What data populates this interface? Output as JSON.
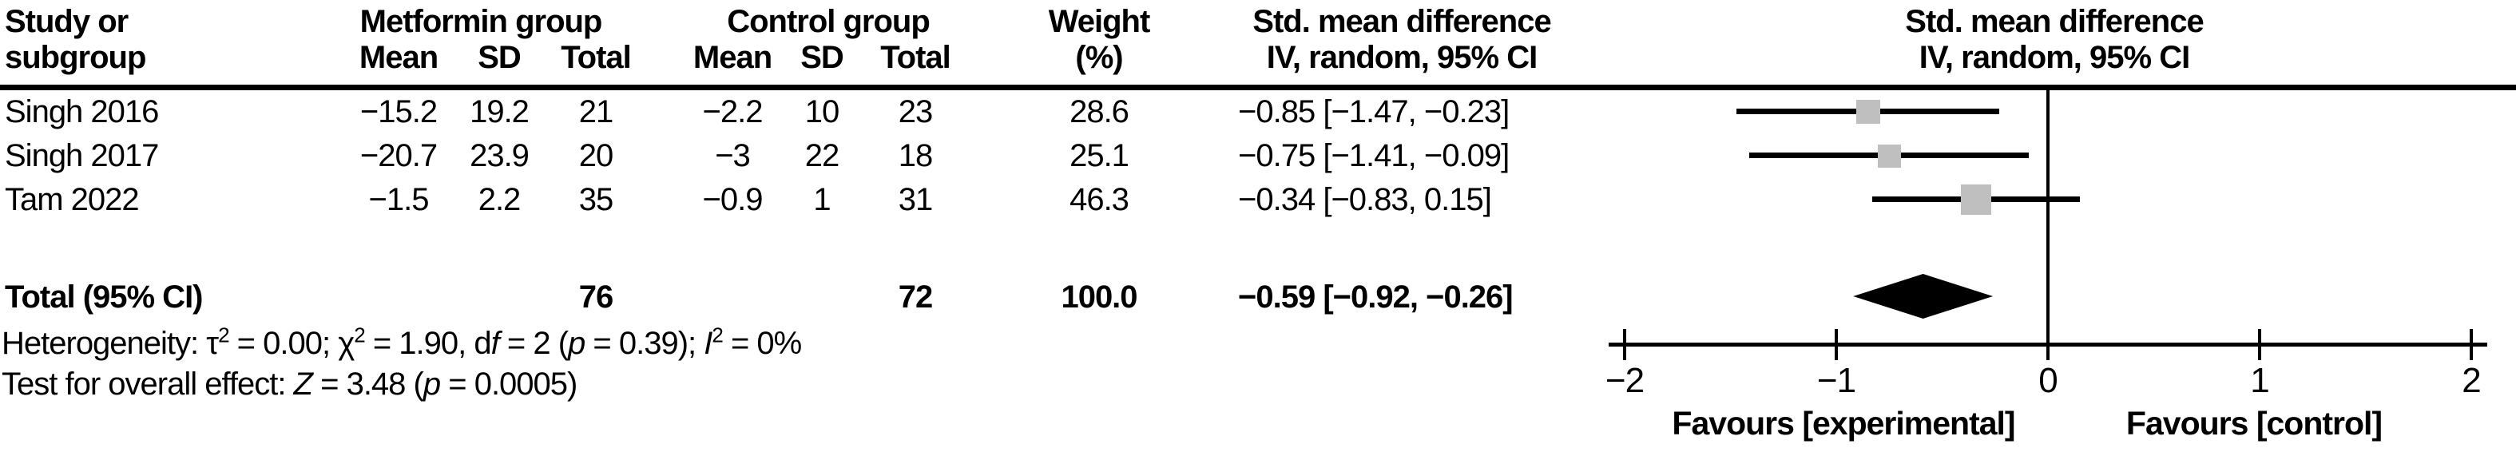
{
  "header": {
    "study_col_line1": "Study or",
    "study_col_line2": "subgroup",
    "metformin_group": "Metformin group",
    "control_group": "Control group",
    "mean": "Mean",
    "sd": "SD",
    "total": "Total",
    "weight_line1": "Weight",
    "weight_line2": "(%)",
    "smd_line1": "Std. mean difference",
    "smd_line2": "IV, random, 95% CI"
  },
  "table": {
    "studies": [
      {
        "name": "Singh 2016",
        "m_mean": "−15.2",
        "m_sd": "19.2",
        "m_total": "21",
        "c_mean": "−2.2",
        "c_sd": "10",
        "c_total": "23",
        "weight": "28.6",
        "ci": "−0.85 [−1.47, −0.23]"
      },
      {
        "name": "Singh 2017",
        "m_mean": "−20.7",
        "m_sd": "23.9",
        "m_total": "20",
        "c_mean": "−3",
        "c_sd": "22",
        "c_total": "18",
        "weight": "25.1",
        "ci": "−0.75 [−1.41, −0.09]"
      },
      {
        "name": "Tam 2022",
        "m_mean": "−1.5",
        "m_sd": "2.2",
        "m_total": "35",
        "c_mean": "−0.9",
        "c_sd": "1",
        "c_total": "31",
        "weight": "46.3",
        "ci": "−0.34 [−0.83, 0.15]"
      }
    ],
    "total_row": {
      "name": "Total (95% CI)",
      "m_total": "76",
      "c_total": "72",
      "weight": "100.0",
      "ci": "−0.59 [−0.92, −0.26]"
    }
  },
  "footnotes": {
    "heterogeneity": [
      {
        "t": "Heterogeneity: "
      },
      {
        "t": "τ"
      },
      {
        "t": "2",
        "sup": true
      },
      {
        "t": " = 0.00; "
      },
      {
        "t": "χ"
      },
      {
        "t": "2",
        "sup": true
      },
      {
        "t": " = 1.90, d"
      },
      {
        "t": "f",
        "i": true
      },
      {
        "t": " = 2 ("
      },
      {
        "t": "p",
        "i": true
      },
      {
        "t": " = 0.39); "
      },
      {
        "t": "I",
        "i": true
      },
      {
        "t": "2",
        "sup": true
      },
      {
        "t": " = 0%"
      }
    ],
    "overall_effect": [
      {
        "t": "Test for overall effect: "
      },
      {
        "t": "Z",
        "i": true
      },
      {
        "t": " = 3.48 ("
      },
      {
        "t": "p",
        "i": true
      },
      {
        "t": " = 0.0005)"
      }
    ]
  },
  "axis": {
    "tick_labels": [
      "−2",
      "−1",
      "0",
      "1",
      "2"
    ],
    "favours_left": "Favours [experimental]",
    "favours_right": "Favours [control]"
  },
  "colors": {
    "marker_fill": "#bfbfbf",
    "line": "#000000",
    "diamond_fill": "#000000",
    "text": "#000000"
  },
  "chart_data": {
    "type": "scatter",
    "subtype": "forest-plot",
    "title": "Std. mean difference, IV, random, 95% CI (Metformin group vs Control group)",
    "x_axis": {
      "range": [
        -2,
        2
      ],
      "ticks": [
        -2,
        -1,
        0,
        1,
        2
      ],
      "zero_line": 0
    },
    "studies": [
      {
        "name": "Singh 2016",
        "metformin": {
          "mean": -15.2,
          "sd": 19.2,
          "total": 21
        },
        "control": {
          "mean": -2.2,
          "sd": 10,
          "total": 23
        },
        "weight_pct": 28.6,
        "estimate": -0.85,
        "ci_low": -1.47,
        "ci_high": -0.23
      },
      {
        "name": "Singh 2017",
        "metformin": {
          "mean": -20.7,
          "sd": 23.9,
          "total": 20
        },
        "control": {
          "mean": -3,
          "sd": 22,
          "total": 18
        },
        "weight_pct": 25.1,
        "estimate": -0.75,
        "ci_low": -1.41,
        "ci_high": -0.09
      },
      {
        "name": "Tam 2022",
        "metformin": {
          "mean": -1.5,
          "sd": 2.2,
          "total": 35
        },
        "control": {
          "mean": -0.9,
          "sd": 1,
          "total": 31
        },
        "weight_pct": 46.3,
        "estimate": -0.34,
        "ci_low": -0.83,
        "ci_high": 0.15
      }
    ],
    "total": {
      "name": "Total (95% CI)",
      "metformin_total": 76,
      "control_total": 72,
      "weight_pct": 100.0,
      "estimate": -0.59,
      "ci_low": -0.92,
      "ci_high": -0.26
    },
    "heterogeneity": {
      "tau2": 0.0,
      "chi2": 1.9,
      "df": 2,
      "p": 0.39,
      "i2_pct": 0
    },
    "overall_effect": {
      "z": 3.48,
      "p": 0.0005
    },
    "favours": {
      "left": "Favours [experimental]",
      "right": "Favours [control]"
    },
    "legend_position": "none",
    "grid": false
  }
}
